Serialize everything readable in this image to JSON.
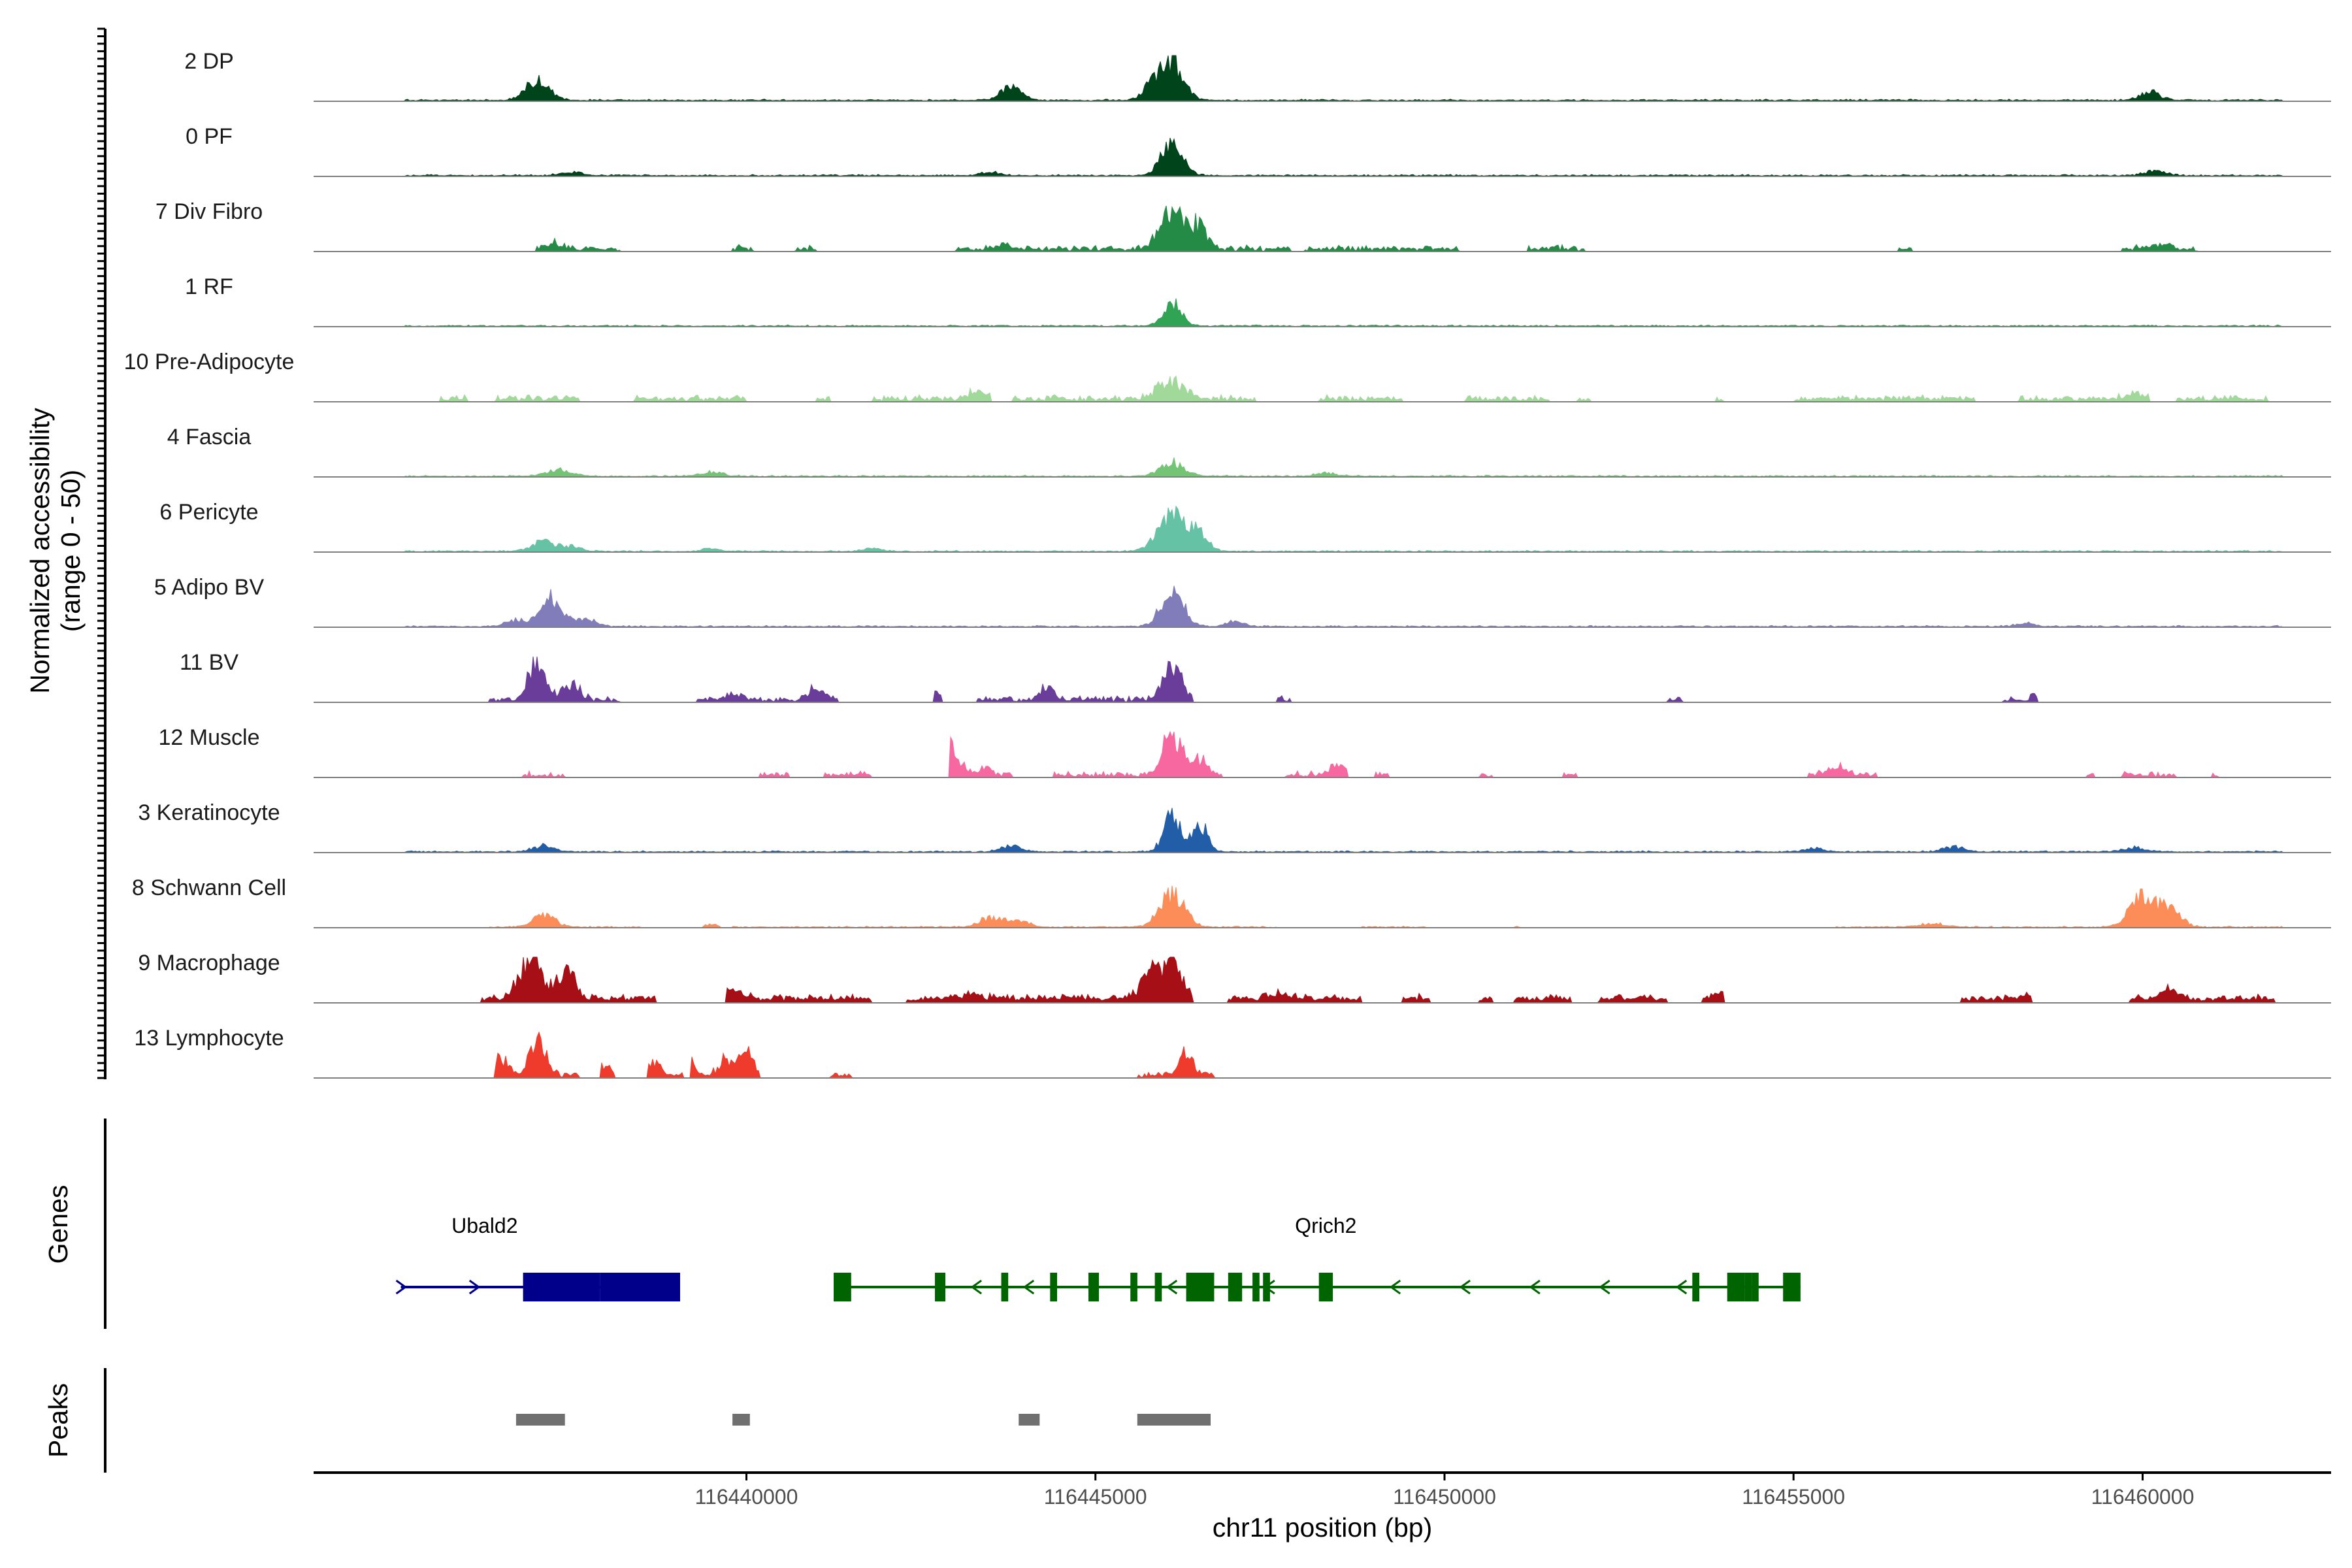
{
  "chart_data": {
    "type": "area",
    "title": "",
    "ylabel_lines": [
      "Normalized accessibility",
      "(range 0 - 50)"
    ],
    "xlabel": "chr11 position (bp)",
    "ylim": [
      0,
      50
    ],
    "xlim": [
      116433800,
      116462700
    ],
    "x_ticks": [
      116440000,
      116445000,
      116450000,
      116455000,
      116460000
    ],
    "x_tick_labels": [
      "116440000",
      "116445000",
      "116450000",
      "116455000",
      "116460000"
    ],
    "tracks": [
      {
        "name": "2 DP",
        "color": "#00441b",
        "baseline": 0.7,
        "style": "smooth",
        "peaks": [
          [
            116437000,
            26,
            160
          ],
          [
            116443800,
            20,
            140
          ],
          [
            116446100,
            50,
            160
          ],
          [
            116460100,
            10,
            150
          ],
          [
            116445800,
            18,
            120
          ]
        ],
        "segments": [
          [
            116435100,
            116462000
          ]
        ]
      },
      {
        "name": "0 PF",
        "color": "#00441b",
        "baseline": 0.6,
        "style": "smooth",
        "peaks": [
          [
            116446100,
            43,
            150
          ],
          [
            116460200,
            6,
            150
          ],
          [
            116443500,
            4,
            150
          ],
          [
            116437500,
            4,
            150
          ]
        ],
        "segments": [
          [
            116435100,
            116462000
          ]
        ]
      },
      {
        "name": "7 Div Fibro",
        "color": "#238b45",
        "baseline": 0.2,
        "style": "spiky",
        "peaks": [
          [
            116446100,
            48,
            180
          ],
          [
            116446500,
            28,
            110
          ],
          [
            116437200,
            7,
            120
          ],
          [
            116460200,
            6,
            150
          ],
          [
            116443700,
            6,
            110
          ]
        ],
        "segments": [
          [
            116437000,
            116438200
          ],
          [
            116439800,
            116440100
          ],
          [
            116440700,
            116441000
          ],
          [
            116443000,
            116447800
          ],
          [
            116448000,
            116450200
          ],
          [
            116451200,
            116452000
          ],
          [
            116456500,
            116456700
          ],
          [
            116459700,
            116460800
          ]
        ]
      },
      {
        "name": "1 RF",
        "color": "#31a354",
        "baseline": 0.4,
        "style": "smooth",
        "peaks": [
          [
            116446100,
            28,
            130
          ]
        ],
        "segments": [
          [
            116435100,
            116462000
          ]
        ]
      },
      {
        "name": "10 Pre-Adipocyte",
        "color": "#a1d99b",
        "baseline": 0.3,
        "style": "spiky",
        "peaks": [
          [
            116446100,
            20,
            200
          ],
          [
            116443300,
            12,
            120
          ],
          [
            116459900,
            5,
            150
          ]
        ],
        "segments": [
          [
            116435600,
            116436000
          ],
          [
            116436400,
            116437600
          ],
          [
            116438400,
            116440000
          ],
          [
            116441000,
            116441200
          ],
          [
            116441800,
            116443500
          ],
          [
            116443800,
            116447300
          ],
          [
            116448200,
            116449400
          ],
          [
            116450300,
            116451500
          ],
          [
            116451900,
            116452100
          ],
          [
            116453900,
            116454000
          ],
          [
            116455000,
            116457600
          ],
          [
            116458200,
            116460100
          ],
          [
            116460500,
            116461800
          ]
        ]
      },
      {
        "name": "4 Fascia",
        "color": "#74c476",
        "baseline": 0.4,
        "style": "smooth",
        "peaks": [
          [
            116446100,
            18,
            160
          ],
          [
            116437300,
            8,
            180
          ],
          [
            116439500,
            5,
            150
          ],
          [
            116448300,
            4,
            150
          ]
        ],
        "segments": [
          [
            116435100,
            116462000
          ]
        ]
      },
      {
        "name": "6 Pericyte",
        "color": "#66c2a4",
        "baseline": 0.4,
        "style": "smooth",
        "peaks": [
          [
            116446100,
            50,
            200
          ],
          [
            116446500,
            22,
            120
          ],
          [
            116437100,
            12,
            160
          ],
          [
            116437500,
            6,
            140
          ],
          [
            116439500,
            4,
            120
          ],
          [
            116441800,
            4,
            120
          ]
        ],
        "segments": [
          [
            116435100,
            116462000
          ]
        ]
      },
      {
        "name": "5 Adipo BV",
        "color": "#807dba",
        "baseline": 0.4,
        "style": "smooth",
        "peaks": [
          [
            116437200,
            36,
            160
          ],
          [
            116446100,
            45,
            160
          ],
          [
            116436700,
            8,
            140
          ],
          [
            116437700,
            10,
            140
          ],
          [
            116447000,
            6,
            120
          ],
          [
            116458300,
            4,
            120
          ]
        ],
        "segments": [
          [
            116435100,
            116462000
          ]
        ]
      },
      {
        "name": "11 BV",
        "color": "#6a3d9a",
        "baseline": 0.2,
        "style": "spiky",
        "peaks": [
          [
            116437000,
            45,
            120
          ],
          [
            116446100,
            45,
            130
          ],
          [
            116437500,
            20,
            120
          ],
          [
            116442700,
            12,
            110
          ],
          [
            116444300,
            14,
            110
          ],
          [
            116441000,
            14,
            120
          ],
          [
            116458600,
            8,
            120
          ],
          [
            116439800,
            8,
            110
          ]
        ],
        "segments": [
          [
            116436300,
            116438200
          ],
          [
            116439300,
            116441300
          ],
          [
            116442700,
            116442800
          ],
          [
            116443300,
            116446400
          ],
          [
            116447600,
            116447800
          ],
          [
            116453200,
            116453400
          ],
          [
            116458000,
            116458500
          ]
        ]
      },
      {
        "name": "12 Muscle",
        "color": "#f768a1",
        "baseline": 0.2,
        "style": "spiky",
        "peaks": [
          [
            116442900,
            38,
            130
          ],
          [
            116446100,
            50,
            140
          ],
          [
            116448500,
            12,
            130
          ],
          [
            116455600,
            10,
            120
          ],
          [
            116446500,
            20,
            100
          ],
          [
            116443400,
            10,
            100
          ]
        ],
        "segments": [
          [
            116436800,
            116437400
          ],
          [
            116440200,
            116440600
          ],
          [
            116441100,
            116441800
          ],
          [
            116442900,
            116443800
          ],
          [
            116444400,
            116446800
          ],
          [
            116447700,
            116448600
          ],
          [
            116449000,
            116449200
          ],
          [
            116450500,
            116450700
          ],
          [
            116451700,
            116451900
          ],
          [
            116455200,
            116456200
          ],
          [
            116459200,
            116459300
          ],
          [
            116459700,
            116460500
          ],
          [
            116461000,
            116461100
          ]
        ]
      },
      {
        "name": "3 Keratinocyte",
        "color": "#225ea8",
        "baseline": 0.5,
        "style": "smooth",
        "peaks": [
          [
            116446100,
            46,
            120
          ],
          [
            116446500,
            35,
            110
          ],
          [
            116437100,
            7,
            160
          ],
          [
            116443800,
            8,
            140
          ],
          [
            116457300,
            6,
            160
          ],
          [
            116459900,
            5,
            160
          ],
          [
            116455300,
            4,
            150
          ]
        ],
        "segments": [
          [
            116435100,
            116462000
          ]
        ]
      },
      {
        "name": "8 Schwann Cell",
        "color": "#fc8d59",
        "baseline": 0.3,
        "style": "smooth",
        "peaks": [
          [
            116446100,
            40,
            180
          ],
          [
            116460000,
            38,
            180
          ],
          [
            116460400,
            25,
            150
          ],
          [
            116437100,
            15,
            160
          ],
          [
            116443500,
            12,
            160
          ],
          [
            116443900,
            9,
            140
          ],
          [
            116439500,
            4,
            160
          ],
          [
            116457000,
            4,
            200
          ]
        ],
        "segments": [
          [
            116436300,
            116438500
          ],
          [
            116439800,
            116447600
          ],
          [
            116448800,
            116449800
          ],
          [
            116451000,
            116451100
          ],
          [
            116455600,
            116462000
          ]
        ]
      },
      {
        "name": "9 Macrophage",
        "color": "#a50f15",
        "baseline": 0.8,
        "style": "spiky",
        "peaks": [
          [
            116436900,
            50,
            150
          ],
          [
            116437400,
            38,
            120
          ],
          [
            116446100,
            40,
            160
          ],
          [
            116445800,
            28,
            150
          ],
          [
            116439800,
            10,
            150
          ],
          [
            116454000,
            10,
            120
          ],
          [
            116460400,
            10,
            120
          ],
          [
            116443200,
            6,
            140
          ],
          [
            116447600,
            6,
            140
          ],
          [
            116458400,
            6,
            140
          ]
        ],
        "segments": [
          [
            116436200,
            116438700
          ],
          [
            116439700,
            116441800
          ],
          [
            116442300,
            116446400
          ],
          [
            116446900,
            116448800
          ],
          [
            116449400,
            116449800
          ],
          [
            116450500,
            116450700
          ],
          [
            116451000,
            116451800
          ],
          [
            116452200,
            116453200
          ],
          [
            116453700,
            116454000
          ],
          [
            116457400,
            116458400
          ],
          [
            116459800,
            116461900
          ]
        ]
      },
      {
        "name": "13 Lymphocyte",
        "color": "#ef3b2c",
        "baseline": 0.2,
        "style": "spiky",
        "peaks": [
          [
            116437000,
            50,
            110
          ],
          [
            116436500,
            22,
            100
          ],
          [
            116440000,
            30,
            90
          ],
          [
            116439700,
            20,
            100
          ],
          [
            116446300,
            30,
            90
          ],
          [
            116438700,
            15,
            100
          ],
          [
            116440900,
            12,
            80
          ],
          [
            116438000,
            12,
            80
          ],
          [
            116439200,
            14,
            80
          ]
        ],
        "segments": [
          [
            116436400,
            116437600
          ],
          [
            116437900,
            116438100
          ],
          [
            116438600,
            116439100
          ],
          [
            116439200,
            116440200
          ],
          [
            116441200,
            116441500
          ],
          [
            116445600,
            116446700
          ]
        ]
      }
    ],
    "genes_label": "Genes",
    "genes": [
      {
        "name": "Ubald2",
        "strand": "+",
        "color": "#00008b",
        "start": 116435050,
        "end": 116439050,
        "label_x": 116436250,
        "exons": [
          [
            116436800,
            116437900
          ]
        ],
        "utr_exons": [
          [
            116437900,
            116439050
          ]
        ],
        "arrows": [
          116435050,
          116436100
        ]
      },
      {
        "name": "Qrich2",
        "strand": "-",
        "color": "#006400",
        "start": 116441250,
        "end": 116455100,
        "label_x": 116448300,
        "exons": [
          [
            116441250,
            116441450
          ],
          [
            116442700,
            116442850
          ],
          [
            116443650,
            116443750
          ],
          [
            116444350,
            116444450
          ],
          [
            116444900,
            116445050
          ],
          [
            116445500,
            116445600
          ],
          [
            116445850,
            116445950
          ],
          [
            116446300,
            116446500
          ],
          [
            116446900,
            116447100
          ],
          [
            116447250,
            116447350
          ],
          [
            116448200,
            116448400
          ],
          [
            116453550,
            116453650
          ],
          [
            116454050,
            116454300
          ],
          [
            116454400,
            116454500
          ],
          [
            116454850,
            116455100
          ]
        ],
        "utr_exons": [
          [
            116441300,
            116441500
          ],
          [
            116446500,
            116446700
          ],
          [
            116447400,
            116447500
          ],
          [
            116454300,
            116454400
          ]
        ],
        "arrows": [
          116443300,
          116444050,
          116446100,
          116447500,
          116449300,
          116450300,
          116451300,
          116452300,
          116453400
        ]
      }
    ],
    "peaks_label": "Peaks",
    "peak_regions": [
      [
        116436700,
        116437400
      ],
      [
        116439800,
        116440050
      ],
      [
        116443900,
        116444200
      ],
      [
        116445600,
        116446650
      ]
    ]
  }
}
